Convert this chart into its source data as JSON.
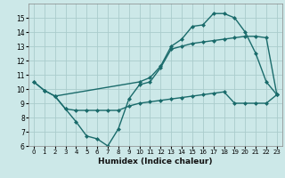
{
  "background_color": "#cce8e8",
  "grid_color": "#aacccc",
  "line_color": "#1a6b6b",
  "marker": "D",
  "marker_size": 2.0,
  "line_width": 1.0,
  "xlabel": "Humidex (Indice chaleur)",
  "ylim": [
    6,
    16
  ],
  "xlim": [
    -0.5,
    23.5
  ],
  "yticks": [
    6,
    7,
    8,
    9,
    10,
    11,
    12,
    13,
    14,
    15
  ],
  "xticks": [
    0,
    1,
    2,
    3,
    4,
    5,
    6,
    7,
    8,
    9,
    10,
    11,
    12,
    13,
    14,
    15,
    16,
    17,
    18,
    19,
    20,
    21,
    22,
    23
  ],
  "line1_x": [
    0,
    1,
    2,
    3,
    4,
    5,
    6,
    7,
    8,
    9,
    10,
    11,
    12,
    13,
    14,
    15,
    16,
    17,
    18,
    19,
    20,
    21,
    22,
    23
  ],
  "line1_y": [
    10.5,
    9.9,
    9.5,
    8.6,
    7.7,
    6.7,
    6.5,
    6.0,
    7.2,
    9.3,
    10.3,
    10.5,
    11.5,
    12.8,
    13.0,
    13.2,
    13.3,
    13.4,
    13.5,
    13.6,
    13.7,
    13.7,
    13.6,
    9.6
  ],
  "line2_x": [
    0,
    1,
    2,
    10,
    11,
    12,
    13,
    14,
    15,
    16,
    17,
    18,
    19,
    20,
    21,
    22,
    23
  ],
  "line2_y": [
    10.5,
    9.9,
    9.5,
    10.5,
    10.8,
    11.6,
    13.0,
    13.5,
    14.4,
    14.5,
    15.3,
    15.3,
    15.0,
    14.0,
    12.5,
    10.5,
    9.6
  ],
  "line3_x": [
    2,
    3,
    4,
    5,
    6,
    7,
    8,
    9,
    10,
    11,
    12,
    13,
    14,
    15,
    16,
    17,
    18,
    19,
    20,
    21,
    22,
    23
  ],
  "line3_y": [
    9.5,
    8.6,
    8.5,
    8.5,
    8.5,
    8.5,
    8.5,
    8.8,
    9.0,
    9.1,
    9.2,
    9.3,
    9.4,
    9.5,
    9.6,
    9.7,
    9.8,
    9.0,
    9.0,
    9.0,
    9.0,
    9.6
  ]
}
